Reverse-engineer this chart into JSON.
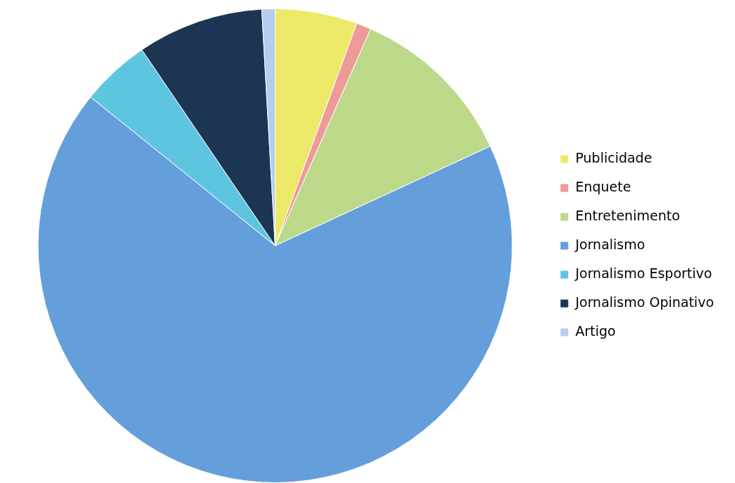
{
  "chart_data": {
    "type": "pie",
    "categories": [
      "Publicidade",
      "Enquete",
      "Entretenimento",
      "Jornalismo",
      "Jornalismo Esportivo",
      "Jornalismo Opinativo",
      "Artigo"
    ],
    "values": [
      5.6,
      1,
      11.5,
      67.7,
      4.7,
      8.6,
      0.9
    ],
    "colors": [
      "#ece969",
      "#ee9a98",
      "#bcd98a",
      "#659fdb",
      "#5ec5e0",
      "#1b3553",
      "#b4cdf0"
    ],
    "legend": "right"
  }
}
